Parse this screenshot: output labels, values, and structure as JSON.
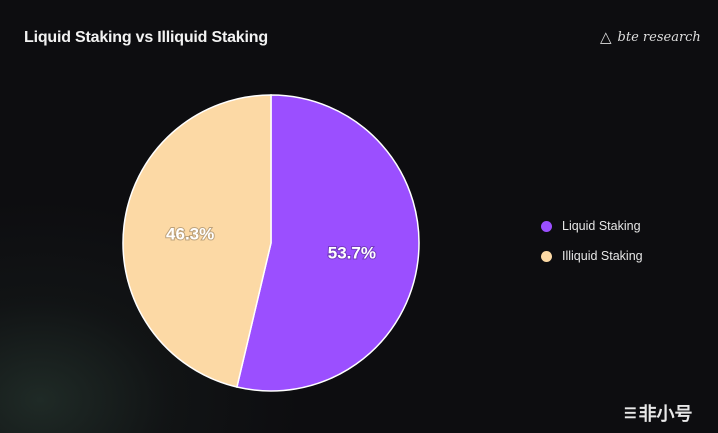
{
  "chart_data": {
    "type": "pie",
    "title": "Liquid Staking vs Illiquid Staking",
    "slices": [
      {
        "label": "Liquid Staking",
        "value": 53.7,
        "display": "53.7%",
        "color": "#9b4fff"
      },
      {
        "label": "Illiquid Staking",
        "value": 46.3,
        "display": "46.3%",
        "color": "#fcd9a5"
      }
    ],
    "start_angle": "12 o'clock, clockwise",
    "legend_position": "right"
  },
  "branding": {
    "logo_text": "bte research",
    "watermark": "非小号"
  },
  "colors": {
    "background": "#0d0d10",
    "slice_border": "#ffffff"
  }
}
